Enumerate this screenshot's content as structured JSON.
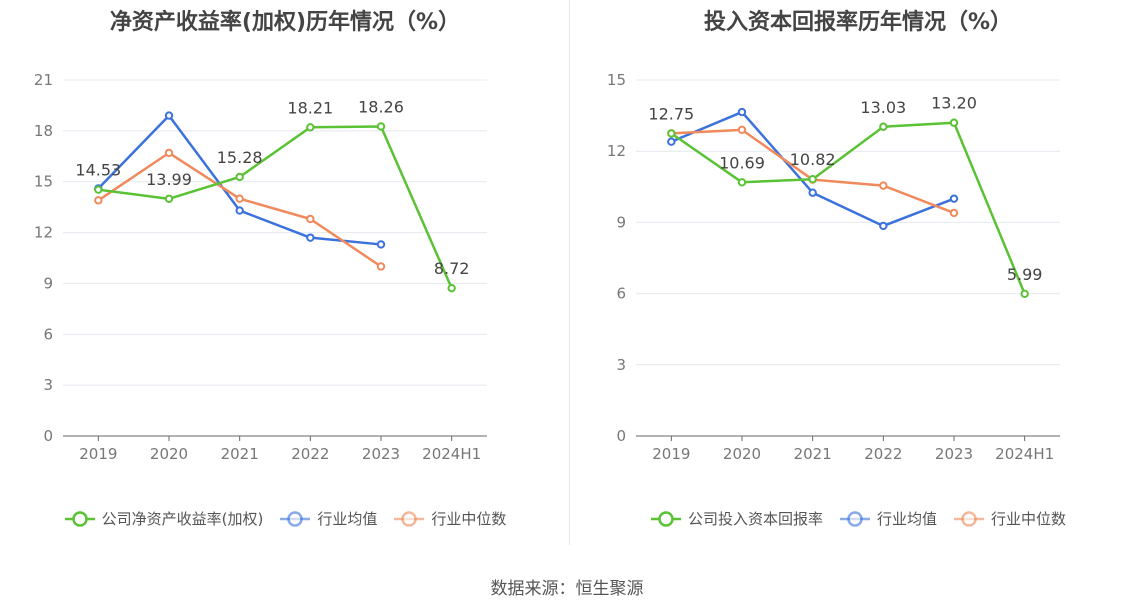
{
  "source": "数据来源：恒生聚源",
  "chart_data": [
    {
      "type": "line",
      "title": "净资产收益率(加权)历年情况（%）",
      "categories": [
        "2019",
        "2020",
        "2021",
        "2022",
        "2023",
        "2024H1"
      ],
      "ylim": [
        0,
        21
      ],
      "yticks": [
        0,
        3,
        6,
        9,
        12,
        15,
        18,
        21
      ],
      "grid": true,
      "legend_position": "bottom",
      "series": [
        {
          "name": "公司净资产收益率(加权)",
          "color": "#5ac234",
          "values": [
            14.53,
            13.99,
            15.28,
            18.21,
            18.26,
            8.72
          ],
          "labels": [
            "14.53",
            "13.99",
            "15.28",
            "18.21",
            "18.26",
            "8.72"
          ]
        },
        {
          "name": "行业均值",
          "color": "#3b72dc",
          "values": [
            14.6,
            18.9,
            13.3,
            11.7,
            11.3,
            null
          ]
        },
        {
          "name": "行业中位数",
          "color": "#f08a5d",
          "values": [
            13.9,
            16.7,
            14.0,
            12.8,
            10.0,
            null
          ]
        }
      ]
    },
    {
      "type": "line",
      "title": "投入资本回报率历年情况（%）",
      "categories": [
        "2019",
        "2020",
        "2021",
        "2022",
        "2023",
        "2024H1"
      ],
      "ylim": [
        0,
        15
      ],
      "yticks": [
        0,
        3,
        6,
        9,
        12,
        15
      ],
      "grid": true,
      "legend_position": "bottom",
      "series": [
        {
          "name": "公司投入资本回报率",
          "color": "#5ac234",
          "values": [
            12.75,
            10.69,
            10.82,
            13.03,
            13.2,
            5.99
          ],
          "labels": [
            "12.75",
            "10.69",
            "10.82",
            "13.03",
            "13.20",
            "5.99"
          ]
        },
        {
          "name": "行业均值",
          "color": "#3b72dc",
          "values": [
            12.4,
            13.65,
            10.25,
            8.85,
            10.0,
            null
          ]
        },
        {
          "name": "行业中位数",
          "color": "#f08a5d",
          "values": [
            12.75,
            12.9,
            10.8,
            10.55,
            9.4,
            null
          ]
        }
      ]
    }
  ]
}
